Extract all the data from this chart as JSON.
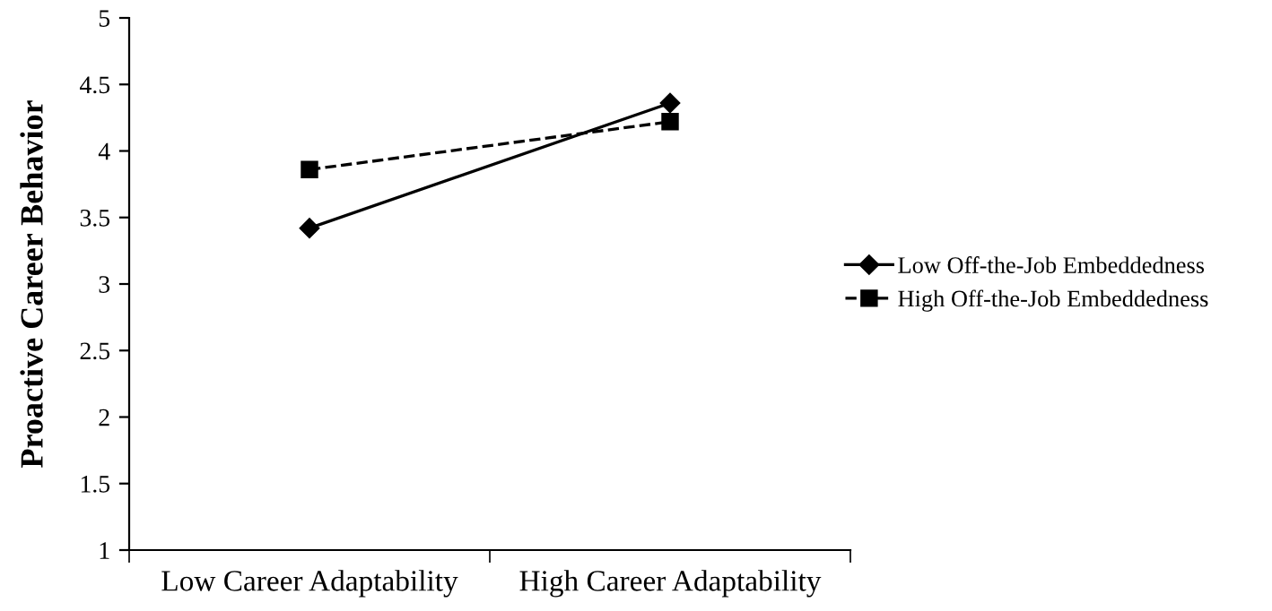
{
  "chart_data": {
    "type": "line",
    "ylabel": "Proactive Career Behavior",
    "categories": [
      "Low Career Adaptability",
      "High Career Adaptability"
    ],
    "series": [
      {
        "name": "Low Off-the-Job Embeddedness",
        "color": "#000000",
        "values": [
          3.42,
          4.36
        ],
        "marker": "diamond",
        "line_style": "solid"
      },
      {
        "name": "High Off-the-Job Embeddedness",
        "color": "#000000",
        "values": [
          3.86,
          4.22
        ],
        "marker": "square",
        "line_style": "dashed"
      }
    ],
    "ylim": [
      1,
      5
    ],
    "yticks": [
      1,
      1.5,
      2,
      2.5,
      3,
      3.5,
      4,
      4.5,
      5
    ],
    "grid": false,
    "legend": "right"
  }
}
